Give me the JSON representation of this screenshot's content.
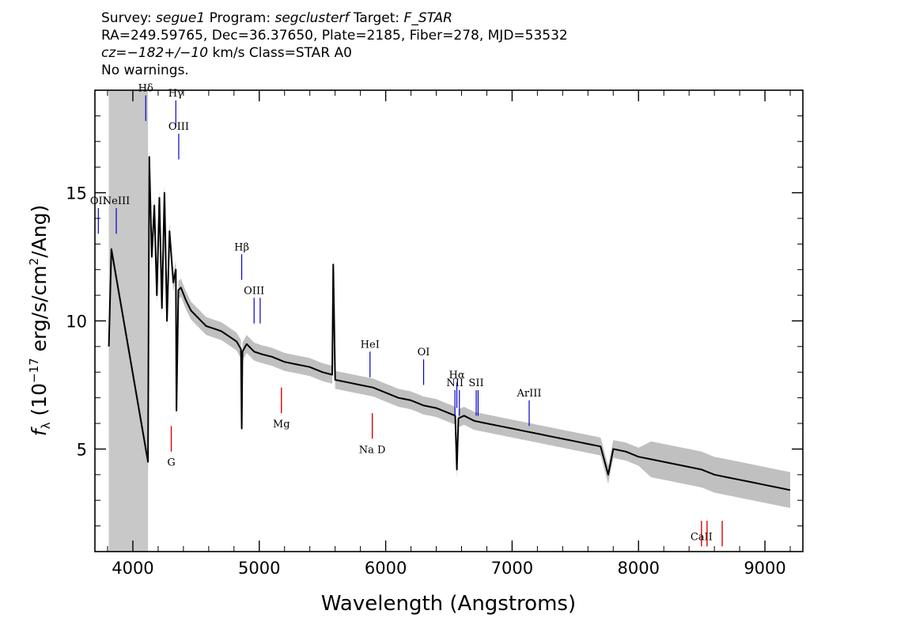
{
  "header": {
    "survey_label": "Survey:",
    "survey": "segue1",
    "program_label": "Program:",
    "program": "segclusterf",
    "target_label": "Target:",
    "target": "F_STAR",
    "line2": "RA=249.59765, Dec=36.37650, Plate=2185, Fiber=278, MJD=53532",
    "cz": "cz=−182+/−10",
    "line3_rest": "km/s Class=STAR A0",
    "line4": "No warnings."
  },
  "colors": {
    "spectrum": "#000000",
    "error_band": "#c0c0c0",
    "emission_marker": "#0000cc",
    "absorption_marker": "#dd0000",
    "masked_region": "#c8c8c8"
  },
  "chart_data": {
    "type": "line",
    "xlabel": "Wavelength (Angstroms)",
    "ylabel_parts": {
      "f": "f",
      "sub": "λ",
      "text1": " (10",
      "exp1": "−17",
      "text2": " erg/s/cm",
      "exp2": "2",
      "text3": "/Ang)"
    },
    "xlim": [
      3700,
      9300
    ],
    "ylim": [
      1,
      19
    ],
    "xticks": [
      4000,
      5000,
      6000,
      7000,
      8000,
      9000
    ],
    "yticks": [
      5,
      10,
      15
    ],
    "masked_region": [
      3810,
      4120
    ],
    "series": [
      {
        "x": [
          3810,
          3830,
          4120,
          4130,
          4150,
          4170,
          4190,
          4210,
          4230,
          4250,
          4270,
          4290,
          4320,
          4340,
          4345,
          4360,
          4380,
          4420,
          4460,
          4520,
          4580,
          4640,
          4700,
          4760,
          4820,
          4855,
          4861,
          4867,
          4900,
          4960,
          5020,
          5100,
          5200,
          5300,
          5400,
          5500,
          5577,
          5585,
          5600,
          5700,
          5800,
          5900,
          6000,
          6100,
          6200,
          6300,
          6400,
          6500,
          6550,
          6563,
          6575,
          6620,
          6700,
          6800,
          6900,
          7000,
          7100,
          7200,
          7300,
          7400,
          7500,
          7600,
          7700,
          7760,
          7800,
          7900,
          8000,
          8100,
          8200,
          8300,
          8400,
          8500,
          8600,
          8700,
          8800,
          8900,
          9000,
          9100,
          9200
        ],
        "y": [
          9.0,
          12.8,
          4.5,
          16.4,
          12.5,
          14.5,
          11.0,
          14.8,
          10.5,
          15.0,
          10.0,
          13.5,
          11.5,
          12.0,
          6.5,
          11.2,
          11.3,
          10.8,
          10.4,
          10.1,
          9.8,
          9.7,
          9.6,
          9.4,
          9.2,
          8.9,
          5.8,
          8.8,
          9.1,
          8.8,
          8.7,
          8.6,
          8.4,
          8.3,
          8.2,
          8.0,
          7.9,
          12.2,
          7.7,
          7.6,
          7.5,
          7.4,
          7.2,
          7.0,
          6.9,
          6.7,
          6.6,
          6.4,
          6.3,
          4.2,
          6.2,
          6.3,
          6.1,
          6.0,
          5.9,
          5.8,
          5.7,
          5.6,
          5.5,
          5.4,
          5.3,
          5.2,
          5.1,
          4.0,
          5.0,
          4.9,
          4.7,
          4.6,
          4.5,
          4.4,
          4.3,
          4.2,
          4.0,
          3.9,
          3.8,
          3.7,
          3.6,
          3.5,
          3.4
        ]
      }
    ],
    "emission_lines": [
      {
        "label": "OII",
        "x": 3727,
        "top": 14.4,
        "bottom": 13.4
      },
      {
        "label": "NeIII",
        "x": 3869,
        "top": 14.4,
        "bottom": 13.4
      },
      {
        "label": "Hδ",
        "x": 4102,
        "top": 18.8,
        "bottom": 17.8
      },
      {
        "label": "Hγ",
        "x": 4340,
        "top": 18.6,
        "bottom": 17.6
      },
      {
        "label": "OIII",
        "x": 4363,
        "top": 17.3,
        "bottom": 16.3
      },
      {
        "label": "Hβ",
        "x": 4861,
        "top": 12.6,
        "bottom": 11.6
      },
      {
        "label": "OIII",
        "x": 4959,
        "top": 10.9,
        "bottom": 9.9
      },
      {
        "label": "",
        "x": 5007,
        "top": 10.9,
        "bottom": 9.9
      },
      {
        "label": "HeI",
        "x": 5876,
        "top": 8.8,
        "bottom": 7.8
      },
      {
        "label": "OI",
        "x": 6300,
        "top": 8.5,
        "bottom": 7.5
      },
      {
        "label": "NII",
        "x": 6548,
        "top": 7.3,
        "bottom": 6.3
      },
      {
        "label": "Hα",
        "x": 6563,
        "top": 7.6,
        "bottom": 6.6
      },
      {
        "label": "",
        "x": 6583,
        "top": 7.3,
        "bottom": 6.3
      },
      {
        "label": "SII",
        "x": 6716,
        "top": 7.3,
        "bottom": 6.3
      },
      {
        "label": "",
        "x": 6731,
        "top": 7.3,
        "bottom": 6.3
      },
      {
        "label": "ArIII",
        "x": 7135,
        "top": 6.9,
        "bottom": 5.9
      }
    ],
    "absorption_lines": [
      {
        "label": "G",
        "x": 4304,
        "top": 5.9,
        "bottom": 4.9,
        "label_y": 4.5
      },
      {
        "label": "Mg",
        "x": 5175,
        "top": 7.4,
        "bottom": 6.4,
        "label_y": 6.0
      },
      {
        "label": "Na D",
        "x": 5894,
        "top": 6.4,
        "bottom": 5.4,
        "label_y": 5.0
      },
      {
        "label": "CaII",
        "x": 8498,
        "top": 2.2,
        "bottom": 1.2,
        "label_y": 1.6
      },
      {
        "label": "",
        "x": 8542,
        "top": 2.2,
        "bottom": 1.2,
        "label_y": 1.6
      },
      {
        "label": "",
        "x": 8662,
        "top": 2.2,
        "bottom": 1.2,
        "label_y": 1.6
      }
    ]
  }
}
